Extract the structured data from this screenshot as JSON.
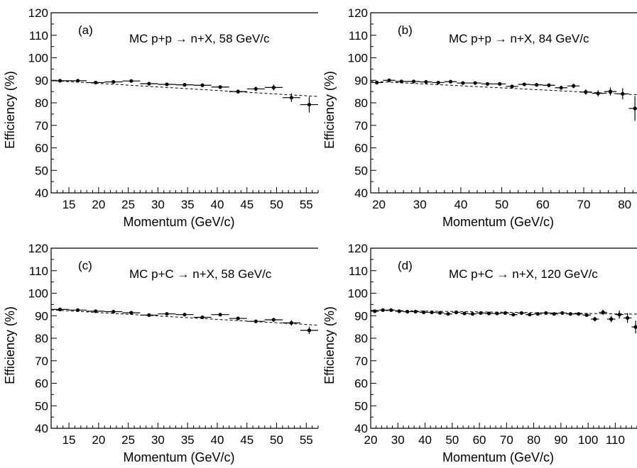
{
  "chart_data": [
    {
      "type": "scatter",
      "panel_label": "(a)",
      "title": "MC p+p → n+X, 58 GeV/c",
      "xlabel": "Momentum  (GeV/c)",
      "ylabel": "Efficiency  (%)",
      "xlim": [
        12,
        57
      ],
      "ylim": [
        40,
        120
      ],
      "xticks": [
        15,
        20,
        25,
        30,
        35,
        40,
        45,
        50,
        55
      ],
      "yticks": [
        40,
        50,
        60,
        70,
        80,
        90,
        100,
        110,
        120
      ],
      "x_halfwidth": 1.5,
      "x": [
        13.5,
        16.5,
        19.5,
        22.5,
        25.5,
        28.5,
        31.5,
        34.5,
        37.5,
        40.5,
        43.5,
        46.5,
        49.5,
        52.5,
        55.5
      ],
      "y": [
        89.8,
        89.8,
        89.0,
        89.3,
        89.7,
        88.5,
        88.2,
        88.0,
        87.8,
        87.0,
        85.0,
        86.2,
        86.8,
        82.3,
        79.2
      ],
      "yerr": [
        0.5,
        0.5,
        0.6,
        0.6,
        0.6,
        0.6,
        0.6,
        0.6,
        0.7,
        0.7,
        0.9,
        1.0,
        1.3,
        1.9,
        3.5
      ],
      "fit_line": {
        "x": [
          12,
          57
        ],
        "y": [
          89.9,
          82.8
        ]
      }
    },
    {
      "type": "scatter",
      "panel_label": "(b)",
      "title": "MC p+p → n+X, 84 GeV/c",
      "xlabel": "Momentum  (GeV/c)",
      "ylabel": "Efficiency  (%)",
      "xlim": [
        18,
        83
      ],
      "ylim": [
        40,
        120
      ],
      "xticks": [
        20,
        30,
        40,
        50,
        60,
        70,
        80
      ],
      "yticks": [
        40,
        50,
        60,
        70,
        80,
        90,
        100,
        110,
        120
      ],
      "x_halfwidth": 1.5,
      "x": [
        19.5,
        22.5,
        25.5,
        28.5,
        31.5,
        34.5,
        37.5,
        40.5,
        43.5,
        46.5,
        49.5,
        52.5,
        55.5,
        58.5,
        61.5,
        64.5,
        67.5,
        70.5,
        73.5,
        76.5,
        79.5,
        82.5
      ],
      "y": [
        89.0,
        90.0,
        89.5,
        89.5,
        89.3,
        89.0,
        89.4,
        88.8,
        88.8,
        88.4,
        88.4,
        87.3,
        88.2,
        88.0,
        87.8,
        86.7,
        87.5,
        84.8,
        84.2,
        85.0,
        84.0,
        77.5
      ],
      "yerr": [
        0.6,
        0.6,
        0.6,
        0.6,
        0.6,
        0.6,
        0.6,
        0.6,
        0.6,
        0.6,
        0.7,
        0.7,
        0.7,
        0.8,
        0.8,
        0.9,
        1.0,
        1.2,
        1.4,
        1.8,
        2.5,
        5.5
      ],
      "fit_line": {
        "x": [
          18,
          83
        ],
        "y": [
          89.6,
          83.6
        ]
      }
    },
    {
      "type": "scatter",
      "panel_label": "(c)",
      "title": "MC p+C → n+X, 58 GeV/c",
      "xlabel": "Momentum  (GeV/c)",
      "ylabel": "Efficiency  (%)",
      "xlim": [
        12,
        57
      ],
      "ylim": [
        40,
        120
      ],
      "xticks": [
        15,
        20,
        25,
        30,
        35,
        40,
        45,
        50,
        55
      ],
      "yticks": [
        40,
        50,
        60,
        70,
        80,
        90,
        100,
        110,
        120
      ],
      "x_halfwidth": 1.5,
      "x": [
        13.5,
        16.5,
        19.5,
        22.5,
        25.5,
        28.5,
        31.5,
        34.5,
        37.5,
        40.5,
        43.5,
        46.5,
        49.5,
        52.5,
        55.5
      ],
      "y": [
        92.8,
        92.5,
        92.0,
        91.8,
        91.3,
        90.3,
        90.8,
        90.5,
        89.3,
        90.5,
        88.8,
        87.5,
        88.2,
        86.8,
        83.5
      ],
      "yerr": [
        0.5,
        0.5,
        0.5,
        0.5,
        0.5,
        0.5,
        0.5,
        0.5,
        0.6,
        0.6,
        0.7,
        0.8,
        0.9,
        1.2,
        1.6
      ],
      "fit_line": {
        "x": [
          12,
          57
        ],
        "y": [
          92.6,
          85.8
        ]
      }
    },
    {
      "type": "scatter",
      "panel_label": "(d)",
      "title": "MC p+C → n+X, 120 GeV/c",
      "xlabel": "Momentum  (GeV/c)",
      "ylabel": "Efficiency  (%)",
      "xlim": [
        20,
        118
      ],
      "ylim": [
        40,
        120
      ],
      "xticks": [
        20,
        30,
        40,
        50,
        60,
        70,
        80,
        90,
        100,
        110
      ],
      "yticks": [
        40,
        50,
        60,
        70,
        80,
        90,
        100,
        110,
        120
      ],
      "x_halfwidth": 1.5,
      "x": [
        21.5,
        24.5,
        27.5,
        30.5,
        33.5,
        36.5,
        39.5,
        42.5,
        45.5,
        48.5,
        51.5,
        54.5,
        57.5,
        60.5,
        63.5,
        66.5,
        69.5,
        72.5,
        75.5,
        78.5,
        81.5,
        84.5,
        87.5,
        90.5,
        93.5,
        96.5,
        99.5,
        102.5,
        105.5,
        108.5,
        111.5,
        114.5,
        117.5
      ],
      "y": [
        92.0,
        92.5,
        92.5,
        92.0,
        91.8,
        91.8,
        91.5,
        91.5,
        91.3,
        90.8,
        91.5,
        91.0,
        90.8,
        91.2,
        91.0,
        91.0,
        91.2,
        90.5,
        91.2,
        90.5,
        90.8,
        91.2,
        90.8,
        91.2,
        90.8,
        90.8,
        90.3,
        88.5,
        91.5,
        88.5,
        90.5,
        89.0,
        85.0
      ],
      "yerr": [
        0.5,
        0.5,
        0.5,
        0.5,
        0.5,
        0.5,
        0.5,
        0.5,
        0.5,
        0.5,
        0.5,
        0.5,
        0.5,
        0.5,
        0.5,
        0.5,
        0.5,
        0.5,
        0.5,
        0.5,
        0.5,
        0.5,
        0.5,
        0.6,
        0.6,
        0.6,
        0.7,
        1.0,
        1.2,
        1.4,
        1.8,
        2.2,
        2.8
      ],
      "fit_line": {
        "x": [
          20,
          118
        ],
        "y": [
          92.4,
          90.7
        ]
      }
    }
  ]
}
